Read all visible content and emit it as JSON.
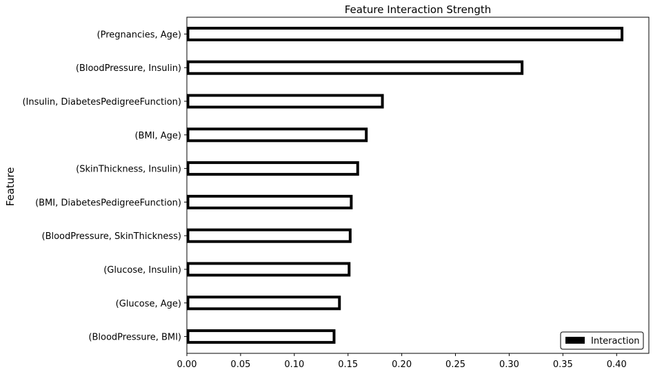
{
  "chart_data": {
    "type": "bar",
    "orientation": "horizontal",
    "title": "Feature Interaction Strength",
    "xlabel": "",
    "ylabel": "Feature",
    "categories": [
      "(Pregnancies, Age)",
      "(BloodPressure, Insulin)",
      "(Insulin, DiabetesPedigreeFunction)",
      "(BMI, Age)",
      "(SkinThickness, Insulin)",
      "(BMI, DiabetesPedigreeFunction)",
      "(BloodPressure, SkinThickness)",
      "(Glucose, Insulin)",
      "(Glucose, Age)",
      "(BloodPressure, BMI)"
    ],
    "series": [
      {
        "name": "Interaction",
        "values": [
          0.405,
          0.312,
          0.182,
          0.167,
          0.159,
          0.153,
          0.152,
          0.151,
          0.142,
          0.137
        ]
      }
    ],
    "xlim": [
      0,
      0.43
    ],
    "xticks": [
      "0.00",
      "0.05",
      "0.10",
      "0.15",
      "0.20",
      "0.25",
      "0.30",
      "0.35",
      "0.40"
    ],
    "grid": false,
    "legend": "bottom-right",
    "colors": {
      "bar_fill": "#ffffff",
      "bar_edge": "#000000",
      "legend_swatch": "#000000"
    }
  }
}
